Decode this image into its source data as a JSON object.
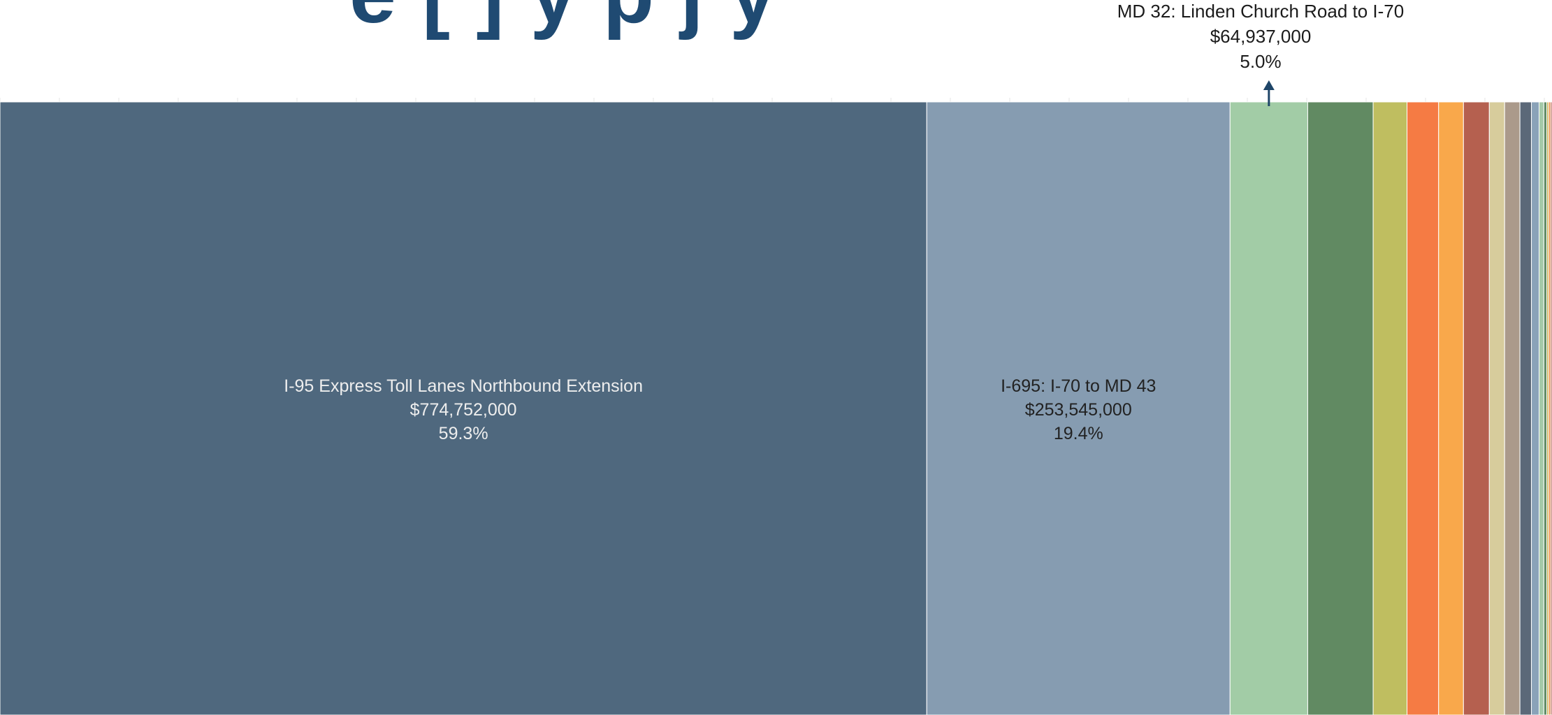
{
  "page": {
    "title_fragment": "e [ ] y p j y",
    "callout": {
      "name": "MD 32: Linden Church Road to I-70",
      "amount": "$64,937,000",
      "percent": "5.0%"
    }
  },
  "colors": {
    "arrow": "#1e4568",
    "title": "#1f4a72",
    "light_text": "#eeeeee",
    "dark_text": "#222222"
  },
  "chart_data": {
    "type": "treemap",
    "value_unit": "USD",
    "segments": [
      {
        "name": "I-95 Express Toll Lanes Northbound Extension",
        "amount": "$774,752,000",
        "percent": "59.3%",
        "value": 774752000,
        "color": "#4f687e",
        "label_color": "light"
      },
      {
        "name": "I-695: I-70 to MD 43",
        "amount": "$253,545,000",
        "percent": "19.4%",
        "value": 253545000,
        "color": "#869cb1",
        "label_color": "dark"
      },
      {
        "name": "MD 32: Linden Church Road to I-70",
        "amount": "$64,937,000",
        "percent": "5.0%",
        "value": 64937000,
        "color": "#a2cca6"
      },
      {
        "value": 54700000,
        "color": "#618a62"
      },
      {
        "value": 28300000,
        "color": "#bfbe60"
      },
      {
        "value": 26400000,
        "color": "#f57b44"
      },
      {
        "value": 20800000,
        "color": "#f9a84b"
      },
      {
        "value": 21600000,
        "color": "#b5604f"
      },
      {
        "value": 12800000,
        "color": "#d7cc9c"
      },
      {
        "value": 12800000,
        "color": "#ab9a8b"
      },
      {
        "value": 9600000,
        "color": "#5b6878"
      },
      {
        "value": 6400000,
        "color": "#8aa2b8"
      },
      {
        "value": 4000000,
        "color": "#a4c9a8"
      },
      {
        "value": 2400000,
        "color": "#5f8a64"
      },
      {
        "value": 1600000,
        "color": "#c9b85c"
      },
      {
        "value": 1600000,
        "color": "#f08b49"
      },
      {
        "value": 1200000,
        "color": "#b4614f"
      }
    ]
  }
}
